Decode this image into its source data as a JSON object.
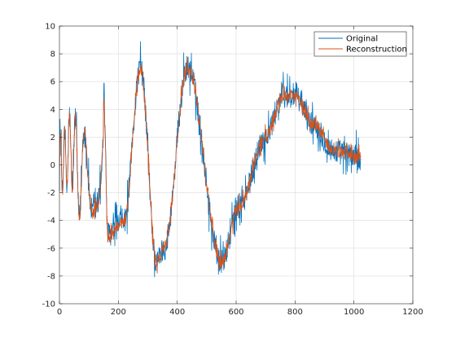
{
  "chart_data": {
    "type": "line",
    "title": "",
    "xlabel": "",
    "ylabel": "",
    "xlim": [
      0,
      1200
    ],
    "ylim": [
      -10,
      10
    ],
    "xticks": [
      0,
      200,
      400,
      600,
      800,
      1000,
      1200
    ],
    "yticks": [
      -10,
      -8,
      -6,
      -4,
      -2,
      0,
      2,
      4,
      6,
      8,
      10
    ],
    "xtick_labels": [
      "0",
      "200",
      "400",
      "600",
      "800",
      "1000",
      "1200"
    ],
    "ytick_labels": [
      "-10",
      "-8",
      "-6",
      "-4",
      "-2",
      "0",
      "2",
      "4",
      "6",
      "8",
      "10"
    ],
    "grid": true,
    "legend_position": "top-right",
    "n_points": 1024,
    "series": [
      {
        "name": "Original",
        "color": "#0072BD",
        "noise_amplitude": 0.9
      },
      {
        "name": "Reconstruction",
        "color": "#D95319",
        "noise_amplitude": 0.45
      }
    ],
    "underlying_signal": {
      "description_points_x": [
        0,
        40,
        80,
        150,
        165,
        220,
        275,
        330,
        355,
        435,
        550,
        610,
        700,
        760,
        800,
        860,
        930,
        1024
      ],
      "description_points_y": [
        0,
        3,
        -3,
        5,
        -5,
        -4,
        7,
        -7,
        -6,
        7,
        -7,
        -3,
        2,
        5,
        5,
        3,
        1,
        0.5
      ]
    }
  }
}
